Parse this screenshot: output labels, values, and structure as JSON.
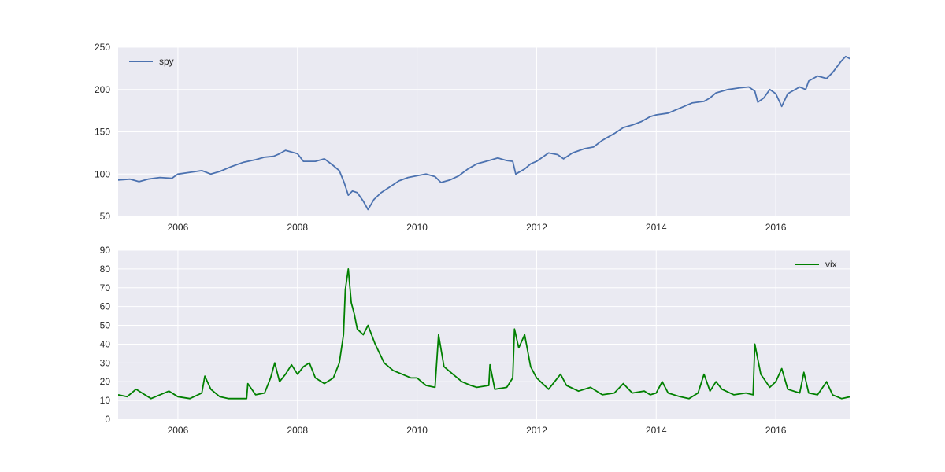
{
  "chart_data": [
    {
      "type": "line",
      "title": "",
      "xlabel": "",
      "ylabel": "",
      "xlim": [
        2005.0,
        2017.25
      ],
      "ylim": [
        50,
        250
      ],
      "xticks": [
        2006,
        2008,
        2010,
        2012,
        2014,
        2016
      ],
      "xtick_labels": [
        "2006",
        "2008",
        "2010",
        "2012",
        "2014",
        "2016"
      ],
      "yticks": [
        50,
        100,
        150,
        200,
        250
      ],
      "ytick_labels": [
        "50",
        "100",
        "150",
        "200",
        "250"
      ],
      "grid": true,
      "legend": "top-left",
      "series": [
        {
          "name": "spy",
          "color": "#4c72b0",
          "points": [
            [
              2005.0,
              93
            ],
            [
              2005.2,
              94
            ],
            [
              2005.35,
              91
            ],
            [
              2005.5,
              94
            ],
            [
              2005.7,
              96
            ],
            [
              2005.9,
              95
            ],
            [
              2006.0,
              100
            ],
            [
              2006.2,
              102
            ],
            [
              2006.4,
              104
            ],
            [
              2006.55,
              100
            ],
            [
              2006.7,
              103
            ],
            [
              2006.9,
              109
            ],
            [
              2007.1,
              114
            ],
            [
              2007.3,
              117
            ],
            [
              2007.45,
              120
            ],
            [
              2007.6,
              121
            ],
            [
              2007.7,
              124
            ],
            [
              2007.8,
              128
            ],
            [
              2007.9,
              126
            ],
            [
              2008.0,
              124
            ],
            [
              2008.1,
              115
            ],
            [
              2008.3,
              115
            ],
            [
              2008.45,
              118
            ],
            [
              2008.6,
              110
            ],
            [
              2008.7,
              104
            ],
            [
              2008.78,
              90
            ],
            [
              2008.85,
              75
            ],
            [
              2008.92,
              80
            ],
            [
              2009.0,
              78
            ],
            [
              2009.1,
              68
            ],
            [
              2009.18,
              58
            ],
            [
              2009.28,
              70
            ],
            [
              2009.4,
              78
            ],
            [
              2009.55,
              85
            ],
            [
              2009.7,
              92
            ],
            [
              2009.85,
              96
            ],
            [
              2010.0,
              98
            ],
            [
              2010.15,
              100
            ],
            [
              2010.3,
              97
            ],
            [
              2010.4,
              90
            ],
            [
              2010.55,
              93
            ],
            [
              2010.7,
              98
            ],
            [
              2010.85,
              106
            ],
            [
              2011.0,
              112
            ],
            [
              2011.2,
              116
            ],
            [
              2011.35,
              119
            ],
            [
              2011.5,
              116
            ],
            [
              2011.6,
              115
            ],
            [
              2011.65,
              100
            ],
            [
              2011.8,
              106
            ],
            [
              2011.9,
              112
            ],
            [
              2012.0,
              115
            ],
            [
              2012.2,
              125
            ],
            [
              2012.35,
              123
            ],
            [
              2012.45,
              118
            ],
            [
              2012.6,
              125
            ],
            [
              2012.8,
              130
            ],
            [
              2012.95,
              132
            ],
            [
              2013.1,
              140
            ],
            [
              2013.3,
              148
            ],
            [
              2013.45,
              155
            ],
            [
              2013.6,
              158
            ],
            [
              2013.75,
              162
            ],
            [
              2013.9,
              168
            ],
            [
              2014.0,
              170
            ],
            [
              2014.2,
              172
            ],
            [
              2014.4,
              178
            ],
            [
              2014.6,
              184
            ],
            [
              2014.8,
              186
            ],
            [
              2014.9,
              190
            ],
            [
              2015.0,
              196
            ],
            [
              2015.2,
              200
            ],
            [
              2015.4,
              202
            ],
            [
              2015.55,
              203
            ],
            [
              2015.65,
              198
            ],
            [
              2015.7,
              185
            ],
            [
              2015.8,
              190
            ],
            [
              2015.9,
              200
            ],
            [
              2016.0,
              195
            ],
            [
              2016.1,
              180
            ],
            [
              2016.2,
              195
            ],
            [
              2016.4,
              203
            ],
            [
              2016.5,
              200
            ],
            [
              2016.55,
              210
            ],
            [
              2016.7,
              216
            ],
            [
              2016.85,
              213
            ],
            [
              2016.95,
              220
            ],
            [
              2017.1,
              234
            ],
            [
              2017.17,
              239
            ],
            [
              2017.25,
              236
            ]
          ]
        }
      ]
    },
    {
      "type": "line",
      "title": "",
      "xlabel": "",
      "ylabel": "",
      "xlim": [
        2005.0,
        2017.25
      ],
      "ylim": [
        0,
        90
      ],
      "xticks": [
        2006,
        2008,
        2010,
        2012,
        2014,
        2016
      ],
      "xtick_labels": [
        "2006",
        "2008",
        "2010",
        "2012",
        "2014",
        "2016"
      ],
      "yticks": [
        0,
        10,
        20,
        30,
        40,
        50,
        60,
        70,
        80,
        90
      ],
      "ytick_labels": [
        "0",
        "10",
        "20",
        "30",
        "40",
        "50",
        "60",
        "70",
        "80",
        "90"
      ],
      "grid": true,
      "legend": "top-right",
      "series": [
        {
          "name": "vix",
          "color": "#008000",
          "points": [
            [
              2005.0,
              13
            ],
            [
              2005.15,
              12
            ],
            [
              2005.3,
              16
            ],
            [
              2005.4,
              14
            ],
            [
              2005.55,
              11
            ],
            [
              2005.7,
              13
            ],
            [
              2005.85,
              15
            ],
            [
              2006.0,
              12
            ],
            [
              2006.2,
              11
            ],
            [
              2006.4,
              14
            ],
            [
              2006.45,
              23
            ],
            [
              2006.55,
              16
            ],
            [
              2006.7,
              12
            ],
            [
              2006.85,
              11
            ],
            [
              2007.0,
              11
            ],
            [
              2007.15,
              11
            ],
            [
              2007.17,
              19
            ],
            [
              2007.3,
              13
            ],
            [
              2007.45,
              14
            ],
            [
              2007.55,
              22
            ],
            [
              2007.62,
              30
            ],
            [
              2007.7,
              20
            ],
            [
              2007.8,
              24
            ],
            [
              2007.9,
              29
            ],
            [
              2008.0,
              24
            ],
            [
              2008.1,
              28
            ],
            [
              2008.2,
              30
            ],
            [
              2008.3,
              22
            ],
            [
              2008.45,
              19
            ],
            [
              2008.6,
              22
            ],
            [
              2008.7,
              30
            ],
            [
              2008.77,
              45
            ],
            [
              2008.8,
              69
            ],
            [
              2008.85,
              80
            ],
            [
              2008.9,
              62
            ],
            [
              2008.95,
              56
            ],
            [
              2009.0,
              48
            ],
            [
              2009.1,
              45
            ],
            [
              2009.18,
              50
            ],
            [
              2009.3,
              40
            ],
            [
              2009.45,
              30
            ],
            [
              2009.6,
              26
            ],
            [
              2009.75,
              24
            ],
            [
              2009.9,
              22
            ],
            [
              2010.0,
              22
            ],
            [
              2010.15,
              18
            ],
            [
              2010.3,
              17
            ],
            [
              2010.36,
              45
            ],
            [
              2010.45,
              28
            ],
            [
              2010.6,
              24
            ],
            [
              2010.75,
              20
            ],
            [
              2010.9,
              18
            ],
            [
              2011.0,
              17
            ],
            [
              2011.2,
              18
            ],
            [
              2011.22,
              29
            ],
            [
              2011.3,
              16
            ],
            [
              2011.5,
              17
            ],
            [
              2011.6,
              22
            ],
            [
              2011.63,
              48
            ],
            [
              2011.7,
              38
            ],
            [
              2011.8,
              45
            ],
            [
              2011.9,
              28
            ],
            [
              2012.0,
              22
            ],
            [
              2012.2,
              16
            ],
            [
              2012.4,
              24
            ],
            [
              2012.5,
              18
            ],
            [
              2012.7,
              15
            ],
            [
              2012.9,
              17
            ],
            [
              2013.1,
              13
            ],
            [
              2013.3,
              14
            ],
            [
              2013.45,
              19
            ],
            [
              2013.6,
              14
            ],
            [
              2013.8,
              15
            ],
            [
              2013.9,
              13
            ],
            [
              2014.0,
              14
            ],
            [
              2014.1,
              20
            ],
            [
              2014.2,
              14
            ],
            [
              2014.4,
              12
            ],
            [
              2014.55,
              11
            ],
            [
              2014.7,
              14
            ],
            [
              2014.8,
              24
            ],
            [
              2014.9,
              15
            ],
            [
              2015.0,
              20
            ],
            [
              2015.1,
              16
            ],
            [
              2015.3,
              13
            ],
            [
              2015.5,
              14
            ],
            [
              2015.62,
              13
            ],
            [
              2015.65,
              40
            ],
            [
              2015.75,
              24
            ],
            [
              2015.9,
              17
            ],
            [
              2016.0,
              20
            ],
            [
              2016.1,
              27
            ],
            [
              2016.2,
              16
            ],
            [
              2016.4,
              14
            ],
            [
              2016.47,
              25
            ],
            [
              2016.55,
              14
            ],
            [
              2016.7,
              13
            ],
            [
              2016.85,
              20
            ],
            [
              2016.95,
              13
            ],
            [
              2017.1,
              11
            ],
            [
              2017.25,
              12
            ]
          ]
        }
      ]
    }
  ]
}
